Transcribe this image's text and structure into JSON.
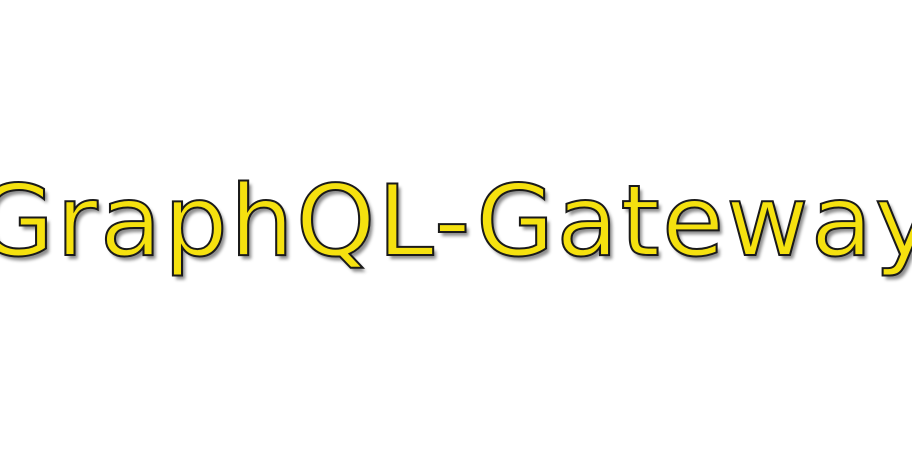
{
  "logo": {
    "text": "GraphQL-Gateway",
    "fill_color": "#f5e10f",
    "outline_color": "#1a1a1a"
  },
  "background_color": "#ffffff"
}
